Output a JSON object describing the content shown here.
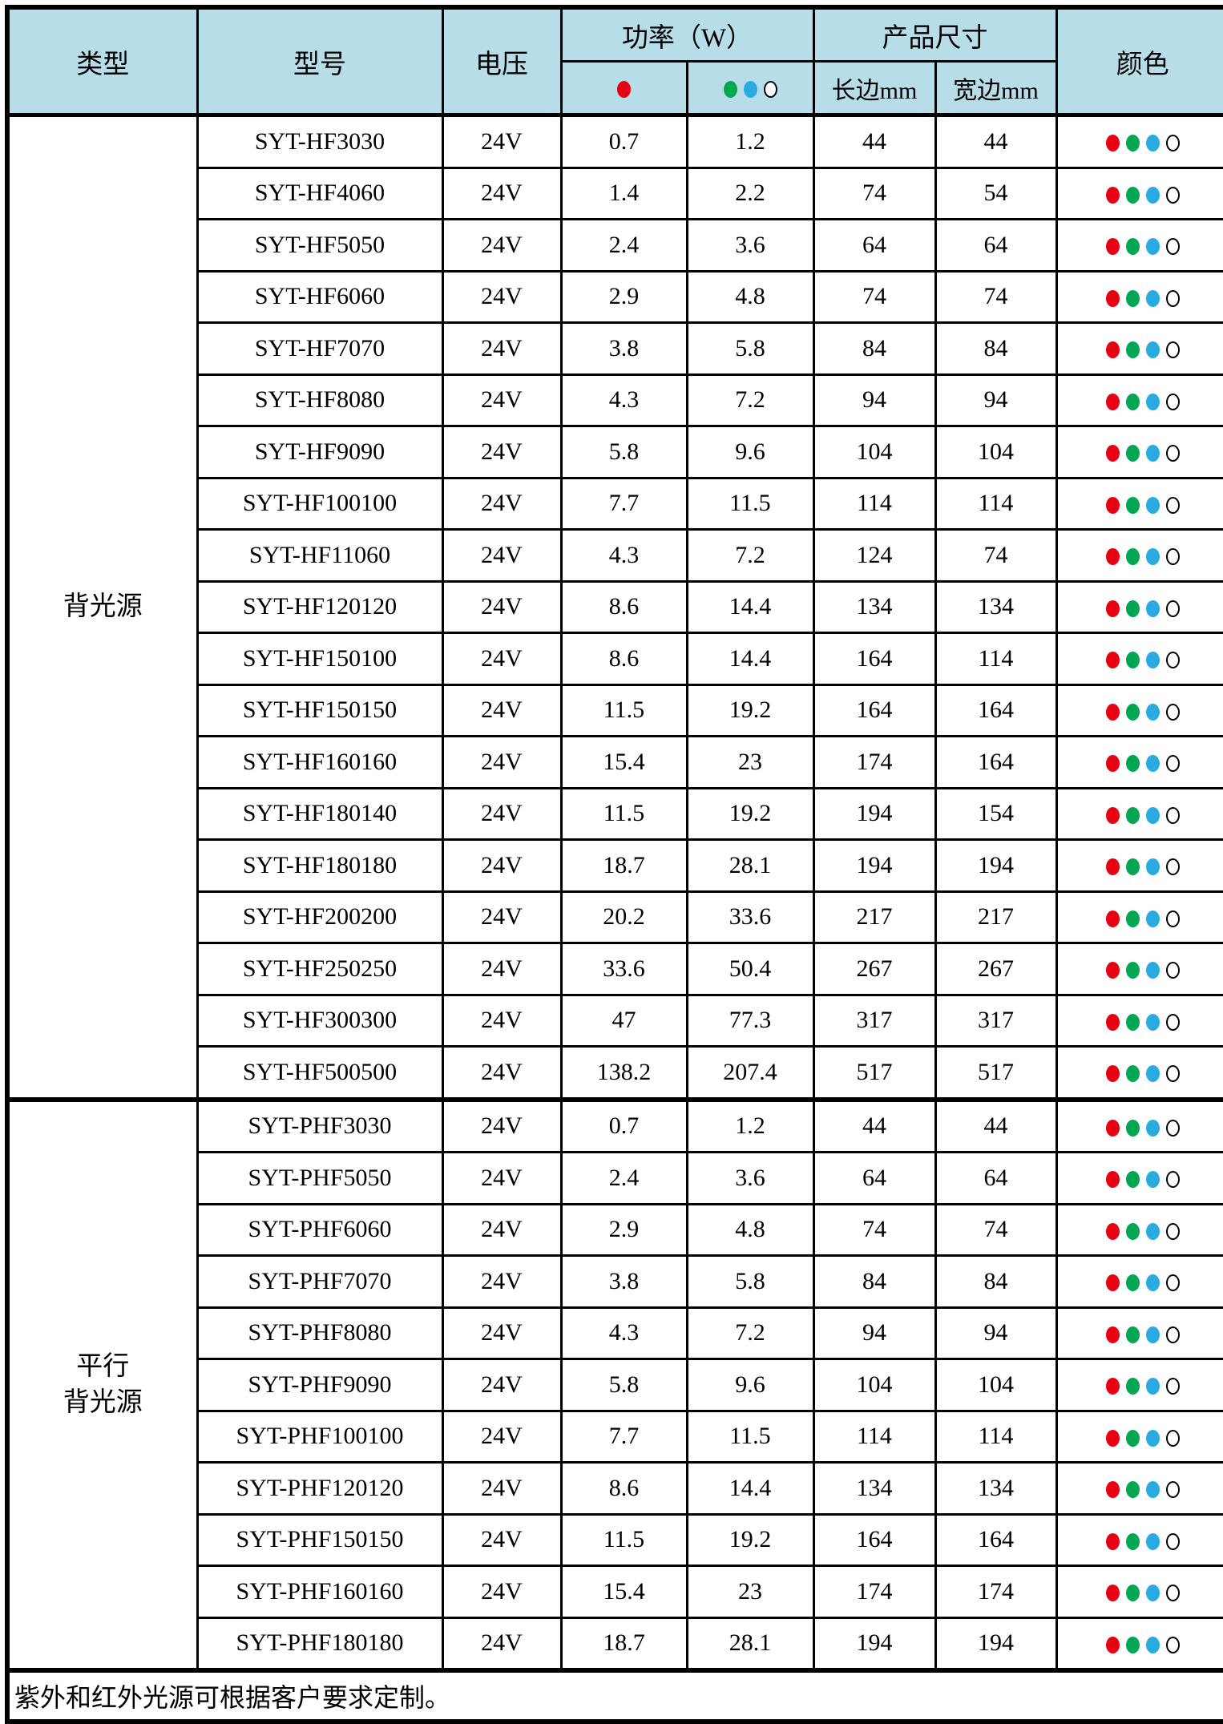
{
  "table": {
    "header": {
      "type": "类型",
      "model": "型号",
      "voltage": "电压",
      "power": "功率（W）",
      "size": "产品尺寸",
      "color": "颜色",
      "size_long": "长边mm",
      "size_wide": "宽边mm"
    },
    "footer_note": "紫外和红外光源可根据客户要求定制。",
    "groups": [
      {
        "type_label_lines": [
          "背光源"
        ],
        "rows": [
          {
            "model": "SYT-HF3030",
            "voltage": "24V",
            "power_red": "0.7",
            "power_gbw": "1.2",
            "long_mm": "44",
            "wide_mm": "44"
          },
          {
            "model": "SYT-HF4060",
            "voltage": "24V",
            "power_red": "1.4",
            "power_gbw": "2.2",
            "long_mm": "74",
            "wide_mm": "54"
          },
          {
            "model": "SYT-HF5050",
            "voltage": "24V",
            "power_red": "2.4",
            "power_gbw": "3.6",
            "long_mm": "64",
            "wide_mm": "64"
          },
          {
            "model": "SYT-HF6060",
            "voltage": "24V",
            "power_red": "2.9",
            "power_gbw": "4.8",
            "long_mm": "74",
            "wide_mm": "74"
          },
          {
            "model": "SYT-HF7070",
            "voltage": "24V",
            "power_red": "3.8",
            "power_gbw": "5.8",
            "long_mm": "84",
            "wide_mm": "84"
          },
          {
            "model": "SYT-HF8080",
            "voltage": "24V",
            "power_red": "4.3",
            "power_gbw": "7.2",
            "long_mm": "94",
            "wide_mm": "94"
          },
          {
            "model": "SYT-HF9090",
            "voltage": "24V",
            "power_red": "5.8",
            "power_gbw": "9.6",
            "long_mm": "104",
            "wide_mm": "104"
          },
          {
            "model": "SYT-HF100100",
            "voltage": "24V",
            "power_red": "7.7",
            "power_gbw": "11.5",
            "long_mm": "114",
            "wide_mm": "114"
          },
          {
            "model": "SYT-HF11060",
            "voltage": "24V",
            "power_red": "4.3",
            "power_gbw": "7.2",
            "long_mm": "124",
            "wide_mm": "74"
          },
          {
            "model": "SYT-HF120120",
            "voltage": "24V",
            "power_red": "8.6",
            "power_gbw": "14.4",
            "long_mm": "134",
            "wide_mm": "134"
          },
          {
            "model": "SYT-HF150100",
            "voltage": "24V",
            "power_red": "8.6",
            "power_gbw": "14.4",
            "long_mm": "164",
            "wide_mm": "114"
          },
          {
            "model": "SYT-HF150150",
            "voltage": "24V",
            "power_red": "11.5",
            "power_gbw": "19.2",
            "long_mm": "164",
            "wide_mm": "164"
          },
          {
            "model": "SYT-HF160160",
            "voltage": "24V",
            "power_red": "15.4",
            "power_gbw": "23",
            "long_mm": "174",
            "wide_mm": "164"
          },
          {
            "model": "SYT-HF180140",
            "voltage": "24V",
            "power_red": "11.5",
            "power_gbw": "19.2",
            "long_mm": "194",
            "wide_mm": "154"
          },
          {
            "model": "SYT-HF180180",
            "voltage": "24V",
            "power_red": "18.7",
            "power_gbw": "28.1",
            "long_mm": "194",
            "wide_mm": "194"
          },
          {
            "model": "SYT-HF200200",
            "voltage": "24V",
            "power_red": "20.2",
            "power_gbw": "33.6",
            "long_mm": "217",
            "wide_mm": "217"
          },
          {
            "model": "SYT-HF250250",
            "voltage": "24V",
            "power_red": "33.6",
            "power_gbw": "50.4",
            "long_mm": "267",
            "wide_mm": "267"
          },
          {
            "model": "SYT-HF300300",
            "voltage": "24V",
            "power_red": "47",
            "power_gbw": "77.3",
            "long_mm": "317",
            "wide_mm": "317"
          },
          {
            "model": "SYT-HF500500",
            "voltage": "24V",
            "power_red": "138.2",
            "power_gbw": "207.4",
            "long_mm": "517",
            "wide_mm": "517"
          }
        ]
      },
      {
        "type_label_lines": [
          "平行",
          "背光源"
        ],
        "rows": [
          {
            "model": "SYT-PHF3030",
            "voltage": "24V",
            "power_red": "0.7",
            "power_gbw": "1.2",
            "long_mm": "44",
            "wide_mm": "44"
          },
          {
            "model": "SYT-PHF5050",
            "voltage": "24V",
            "power_red": "2.4",
            "power_gbw": "3.6",
            "long_mm": "64",
            "wide_mm": "64"
          },
          {
            "model": "SYT-PHF6060",
            "voltage": "24V",
            "power_red": "2.9",
            "power_gbw": "4.8",
            "long_mm": "74",
            "wide_mm": "74"
          },
          {
            "model": "SYT-PHF7070",
            "voltage": "24V",
            "power_red": "3.8",
            "power_gbw": "5.8",
            "long_mm": "84",
            "wide_mm": "84"
          },
          {
            "model": "SYT-PHF8080",
            "voltage": "24V",
            "power_red": "4.3",
            "power_gbw": "7.2",
            "long_mm": "94",
            "wide_mm": "94"
          },
          {
            "model": "SYT-PHF9090",
            "voltage": "24V",
            "power_red": "5.8",
            "power_gbw": "9.6",
            "long_mm": "104",
            "wide_mm": "104"
          },
          {
            "model": "SYT-PHF100100",
            "voltage": "24V",
            "power_red": "7.7",
            "power_gbw": "11.5",
            "long_mm": "114",
            "wide_mm": "114"
          },
          {
            "model": "SYT-PHF120120",
            "voltage": "24V",
            "power_red": "8.6",
            "power_gbw": "14.4",
            "long_mm": "134",
            "wide_mm": "134"
          },
          {
            "model": "SYT-PHF150150",
            "voltage": "24V",
            "power_red": "11.5",
            "power_gbw": "19.2",
            "long_mm": "164",
            "wide_mm": "164"
          },
          {
            "model": "SYT-PHF160160",
            "voltage": "24V",
            "power_red": "15.4",
            "power_gbw": "23",
            "long_mm": "174",
            "wide_mm": "174"
          },
          {
            "model": "SYT-PHF180180",
            "voltage": "24V",
            "power_red": "18.7",
            "power_gbw": "28.1",
            "long_mm": "194",
            "wide_mm": "194"
          }
        ]
      }
    ]
  },
  "colors": {
    "header_bg": "#B7DEE8",
    "red": "#E60012",
    "green": "#00A651",
    "blue": "#29ABE2",
    "white": "#FFFFFF"
  },
  "header_power_red_dots": [
    "red"
  ],
  "header_power_gbw_dots": [
    "green",
    "blue",
    "white"
  ],
  "row_color_dots": [
    "red",
    "green",
    "blue",
    "white"
  ]
}
